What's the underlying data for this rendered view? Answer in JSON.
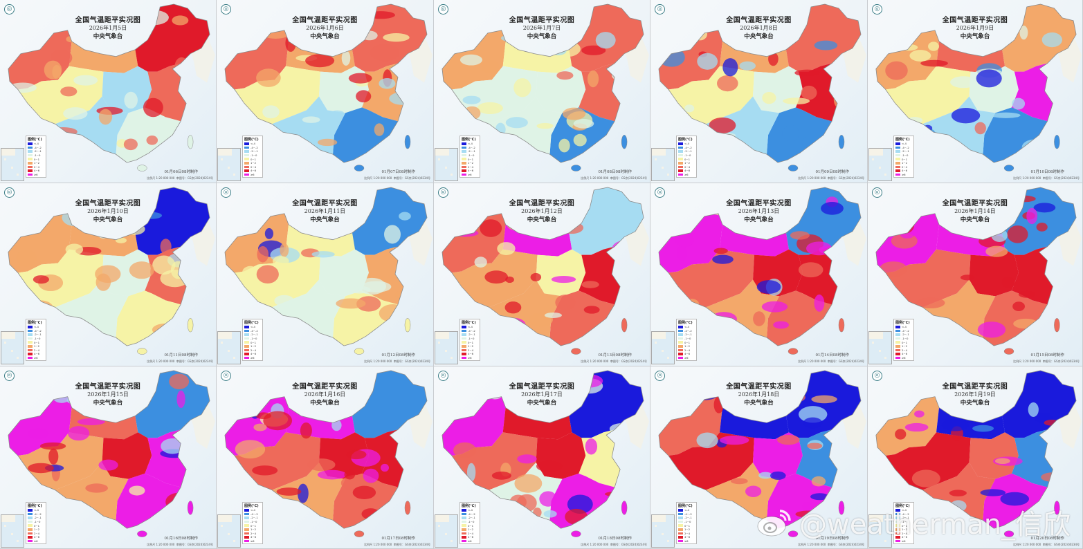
{
  "collage": {
    "title": "全国气温距平实况图",
    "organization": "中央气象台",
    "logo_icon": "cma-logo-icon",
    "legend": {
      "header": "图例(℃)",
      "items": [
        {
          "label": "<-4",
          "color": "#1a1adc"
        },
        {
          "label": "-4~-2",
          "color": "#3c8fe0"
        },
        {
          "label": "-2~-1",
          "color": "#a6dcf2"
        },
        {
          "label": "-1~0",
          "color": "#dff3e6"
        },
        {
          "label": "0~1",
          "color": "#f6f3a6"
        },
        {
          "label": "1~2",
          "color": "#f3a86a"
        },
        {
          "label": "2~4",
          "color": "#ee6a5a"
        },
        {
          "label": "4~6",
          "color": "#e01a2a"
        },
        {
          "label": "≥6",
          "color": "#ec1ee6"
        }
      ]
    },
    "scale_text": "比例尺 1:20 000 000",
    "map_approval": "审图号：GS京(2024)0234号",
    "watermark": "@weatherman_信欣",
    "watermark_icon": "weibo-logo-icon"
  },
  "panels": [
    {
      "date": "2026年1月5日",
      "made": "01月06日08时制作",
      "pattern": "west_warm_center_cool_ne_hot"
    },
    {
      "date": "2026年1月6日",
      "made": "01月07日08时制作",
      "pattern": "warm_north_cool_south"
    },
    {
      "date": "2026年1月7日",
      "made": "01月08日08时制作",
      "pattern": "mixed_warm_east_cool_south"
    },
    {
      "date": "2026年1月8日",
      "made": "01月09日08时制作",
      "pattern": "warm_east_cool_south"
    },
    {
      "date": "2026年1月9日",
      "made": "01月10日08时制作",
      "pattern": "hot_north_cool_south"
    },
    {
      "date": "2026年1月10日",
      "made": "01月11日08时制作",
      "pattern": "warm_mixed_cool_ne"
    },
    {
      "date": "2026年1月11日",
      "made": "01月12日08时制作",
      "pattern": "mild_cool_ne"
    },
    {
      "date": "2026年1月12日",
      "made": "01月13日08时制作",
      "pattern": "hot_north_warm"
    },
    {
      "date": "2026年1月13日",
      "made": "01月14日08时制作",
      "pattern": "very_hot_cool_ne"
    },
    {
      "date": "2026年1月14日",
      "made": "01月15日08时制作",
      "pattern": "very_hot_cool_ne"
    },
    {
      "date": "2026年1月15日",
      "made": "01月16日08时制作",
      "pattern": "very_hot_east_cool_ne"
    },
    {
      "date": "2026年1月16日",
      "made": "01月17日08时制作",
      "pattern": "very_hot_cool_ne"
    },
    {
      "date": "2026年1月17日",
      "made": "01月18日08时制作",
      "pattern": "hot_south_cold_ne"
    },
    {
      "date": "2026年1月18日",
      "made": "01月19日08时制作",
      "pattern": "cold_north_hot_south"
    },
    {
      "date": "2026年1月19日",
      "made": "01月20日08时制作",
      "pattern": "very_cold_north_hot_south"
    }
  ]
}
